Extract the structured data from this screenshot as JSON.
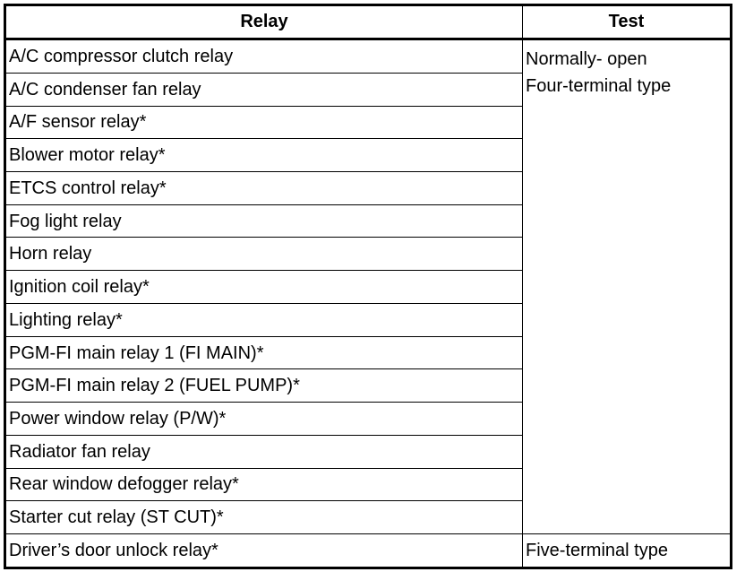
{
  "table": {
    "headers": [
      "Relay",
      "Test"
    ],
    "rows": [
      "A/C compressor clutch relay",
      "A/C condenser fan relay",
      "A/F sensor relay*",
      "Blower motor relay*",
      "ETCS control relay*",
      "Fog light relay",
      "Horn relay",
      "Ignition coil relay*",
      "Lighting relay*",
      "PGM-FI main relay 1 (FI MAIN)*",
      "PGM-FI main relay 2 (FUEL PUMP)*",
      "Power window relay (P/W)*",
      "Radiator fan relay",
      "Rear window defogger relay*",
      "Starter cut relay (ST CUT)*",
      "Driver’s door unlock relay*"
    ],
    "test_group_1": [
      "Normally- open",
      "Four-terminal type"
    ],
    "test_group_2": "Five-terminal type"
  }
}
